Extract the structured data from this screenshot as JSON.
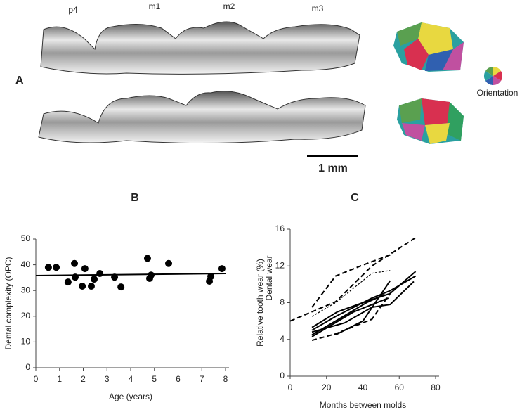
{
  "panel_a": {
    "label": "A",
    "teeth": [
      "p4",
      "m1",
      "m2",
      "m3"
    ],
    "orientation": "Orientation",
    "scale_bar": "1 mm"
  },
  "chart_data": [
    {
      "type": "scatter",
      "title": "B",
      "xlabel": "Age (years)",
      "ylabel": "Dental complexity (OPC)",
      "x": [
        0.53,
        0.86,
        1.36,
        1.63,
        1.66,
        1.96,
        2.07,
        2.34,
        2.46,
        2.7,
        3.32,
        3.59,
        4.71,
        4.8,
        4.86,
        5.6,
        7.32,
        7.38,
        7.85
      ],
      "values": [
        39,
        39,
        33.3,
        40.5,
        35.2,
        31.7,
        38.5,
        31.7,
        34.4,
        36.6,
        35.2,
        31.4,
        42.5,
        34.7,
        36,
        40.5,
        33.6,
        35.5,
        38.5
      ],
      "color": "#000000",
      "trend": {
        "x": [
          0,
          8
        ],
        "values": [
          35.8,
          36.6
        ]
      },
      "xlim": [
        0,
        8
      ],
      "xticks": [
        0,
        1,
        2,
        3,
        4,
        5,
        6,
        7,
        8
      ],
      "ylim": [
        0,
        50
      ],
      "yticks": [
        0,
        10,
        20,
        30,
        40,
        50
      ]
    },
    {
      "type": "line",
      "title": "C",
      "xlabel": "Months between molds",
      "ylabel": [
        "Relative tooth wear (%)",
        "Dental wear"
      ],
      "series": [
        {
          "color": "#000000",
          "style": "dashed",
          "x": [
            0,
            25,
            45,
            70
          ],
          "values": [
            6.0,
            8.1,
            12.0,
            15.2
          ]
        },
        {
          "color": "#000000",
          "style": "dashed",
          "x": [
            12,
            25,
            40,
            55
          ],
          "values": [
            7.5,
            10.9,
            12.1,
            13.2
          ]
        },
        {
          "color": "#000000",
          "style": "dotted",
          "x": [
            12,
            25,
            45,
            55
          ],
          "values": [
            6.5,
            8.0,
            11.2,
            11.5
          ]
        },
        {
          "color": "#000000",
          "style": "dashed",
          "x": [
            12,
            25,
            45,
            55
          ],
          "values": [
            3.9,
            4.6,
            6.2,
            9.0
          ]
        },
        {
          "color": "#000000",
          "style": "solid",
          "x": [
            12,
            26,
            40,
            55,
            69
          ],
          "values": [
            5.3,
            7.0,
            8.0,
            9.0,
            11.4
          ]
        },
        {
          "color": "#000000",
          "style": "solid",
          "x": [
            12,
            25,
            45,
            55,
            69
          ],
          "values": [
            5.0,
            6.5,
            8.5,
            9.3,
            10.9
          ]
        },
        {
          "color": "#000000",
          "style": "solid",
          "x": [
            12,
            30,
            45,
            55,
            68
          ],
          "values": [
            4.8,
            5.8,
            7.5,
            7.8,
            10.3
          ]
        },
        {
          "color": "#000000",
          "style": "solid",
          "x": [
            12,
            25,
            42,
            52
          ],
          "values": [
            4.5,
            6.0,
            8.0,
            8.9
          ]
        },
        {
          "color": "#000000",
          "style": "solid",
          "x": [
            25,
            40,
            55
          ],
          "values": [
            4.5,
            6.0,
            10.4
          ]
        },
        {
          "color": "#000000",
          "style": "solid",
          "x": [
            12,
            35,
            54
          ],
          "values": [
            4.3,
            7.0,
            8.5
          ]
        }
      ],
      "xlim": [
        0,
        80
      ],
      "xticks": [
        0,
        20,
        40,
        60,
        80
      ],
      "ylim": [
        0,
        16
      ],
      "yticks": [
        0,
        4,
        8,
        12,
        16
      ]
    }
  ]
}
